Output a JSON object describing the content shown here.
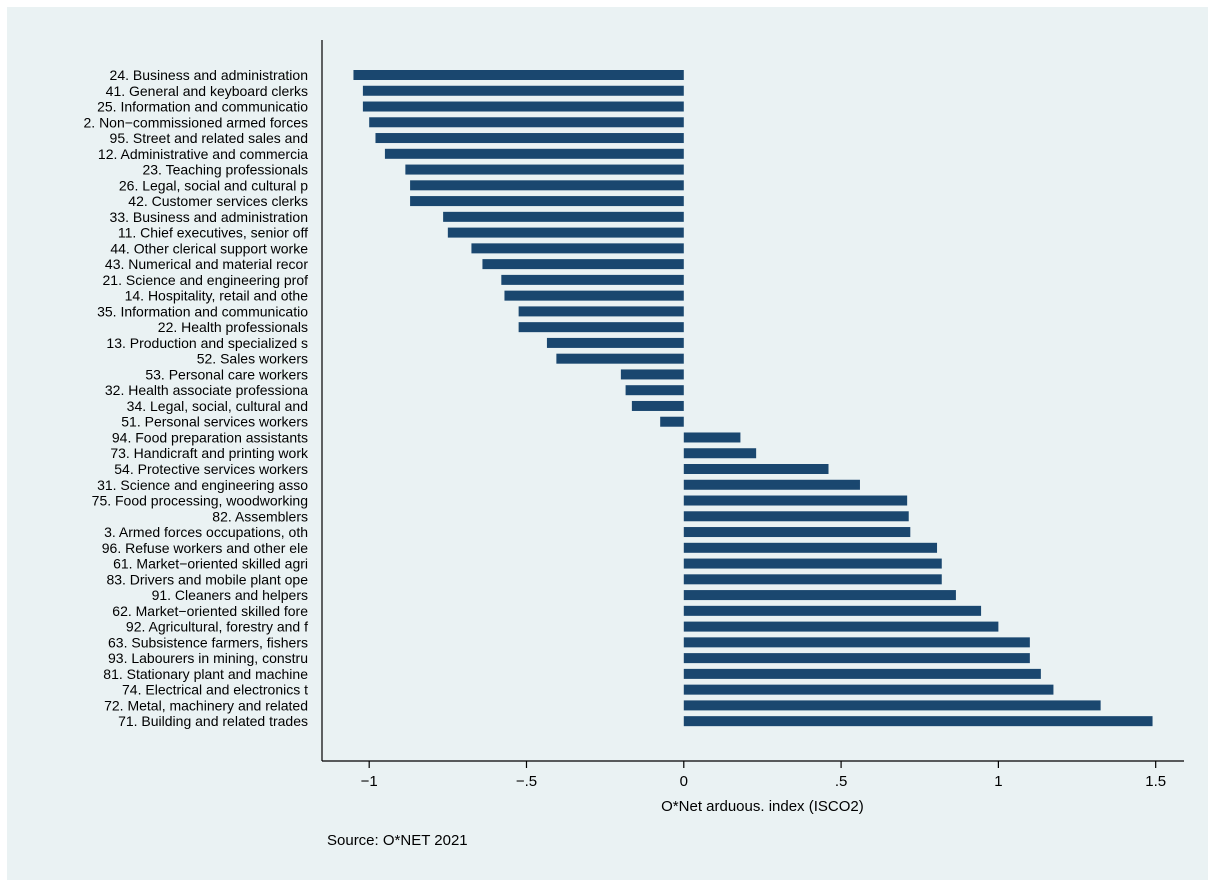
{
  "chart_data": {
    "type": "bar",
    "orientation": "horizontal",
    "xlabel": "O*Net arduous. index (ISCO2)",
    "note": "Source: O*NET 2021",
    "xlim": [
      -1.15,
      1.59
    ],
    "xticks": [
      -1,
      -0.5,
      0,
      0.5,
      1,
      1.5
    ],
    "xtick_labels": [
      "−1",
      "−.5",
      "0",
      ".5",
      "1",
      "1.5"
    ],
    "grid": false,
    "bar_color": "#1a476f",
    "categories": [
      "24. Business and administration",
      "41. General and keyboard clerks",
      "25. Information and communicatio",
      "2. Non−commissioned armed forces",
      "95. Street and related sales and",
      "12. Administrative and commercia",
      "23. Teaching professionals",
      "26. Legal, social and cultural p",
      "42. Customer services clerks",
      "33. Business and administration",
      "11. Chief executives, senior off",
      "44. Other clerical support worke",
      "43. Numerical and material recor",
      "21. Science and engineering prof",
      "14. Hospitality, retail and othe",
      "35. Information and communicatio",
      "22. Health professionals",
      "13. Production and specialized s",
      "52. Sales workers",
      "53. Personal care workers",
      "32. Health associate professiona",
      "34. Legal, social, cultural and",
      "51. Personal services workers",
      "94. Food preparation assistants",
      "73. Handicraft and printing work",
      "54. Protective services workers",
      "31. Science and engineering asso",
      "75. Food processing, woodworking",
      "82. Assemblers",
      "3. Armed forces occupations, oth",
      "96. Refuse workers and other ele",
      "61. Market−oriented skilled agri",
      "83. Drivers and mobile plant ope",
      "91. Cleaners and helpers",
      "62. Market−oriented skilled fore",
      "92. Agricultural, forestry and f",
      "63. Subsistence farmers, fishers",
      "93. Labourers in mining, constru",
      "81. Stationary plant and machine",
      "74. Electrical and electronics t",
      "72. Metal, machinery and related",
      "71. Building and related trades"
    ],
    "values": [
      -1.05,
      -1.02,
      -1.02,
      -1.0,
      -0.98,
      -0.95,
      -0.885,
      -0.87,
      -0.87,
      -0.765,
      -0.75,
      -0.675,
      -0.64,
      -0.58,
      -0.57,
      -0.525,
      -0.525,
      -0.435,
      -0.405,
      -0.2,
      -0.185,
      -0.165,
      -0.075,
      0.18,
      0.23,
      0.46,
      0.56,
      0.71,
      0.715,
      0.72,
      0.805,
      0.82,
      0.82,
      0.865,
      0.945,
      1.0,
      1.1,
      1.1,
      1.135,
      1.175,
      1.325,
      1.49
    ]
  }
}
